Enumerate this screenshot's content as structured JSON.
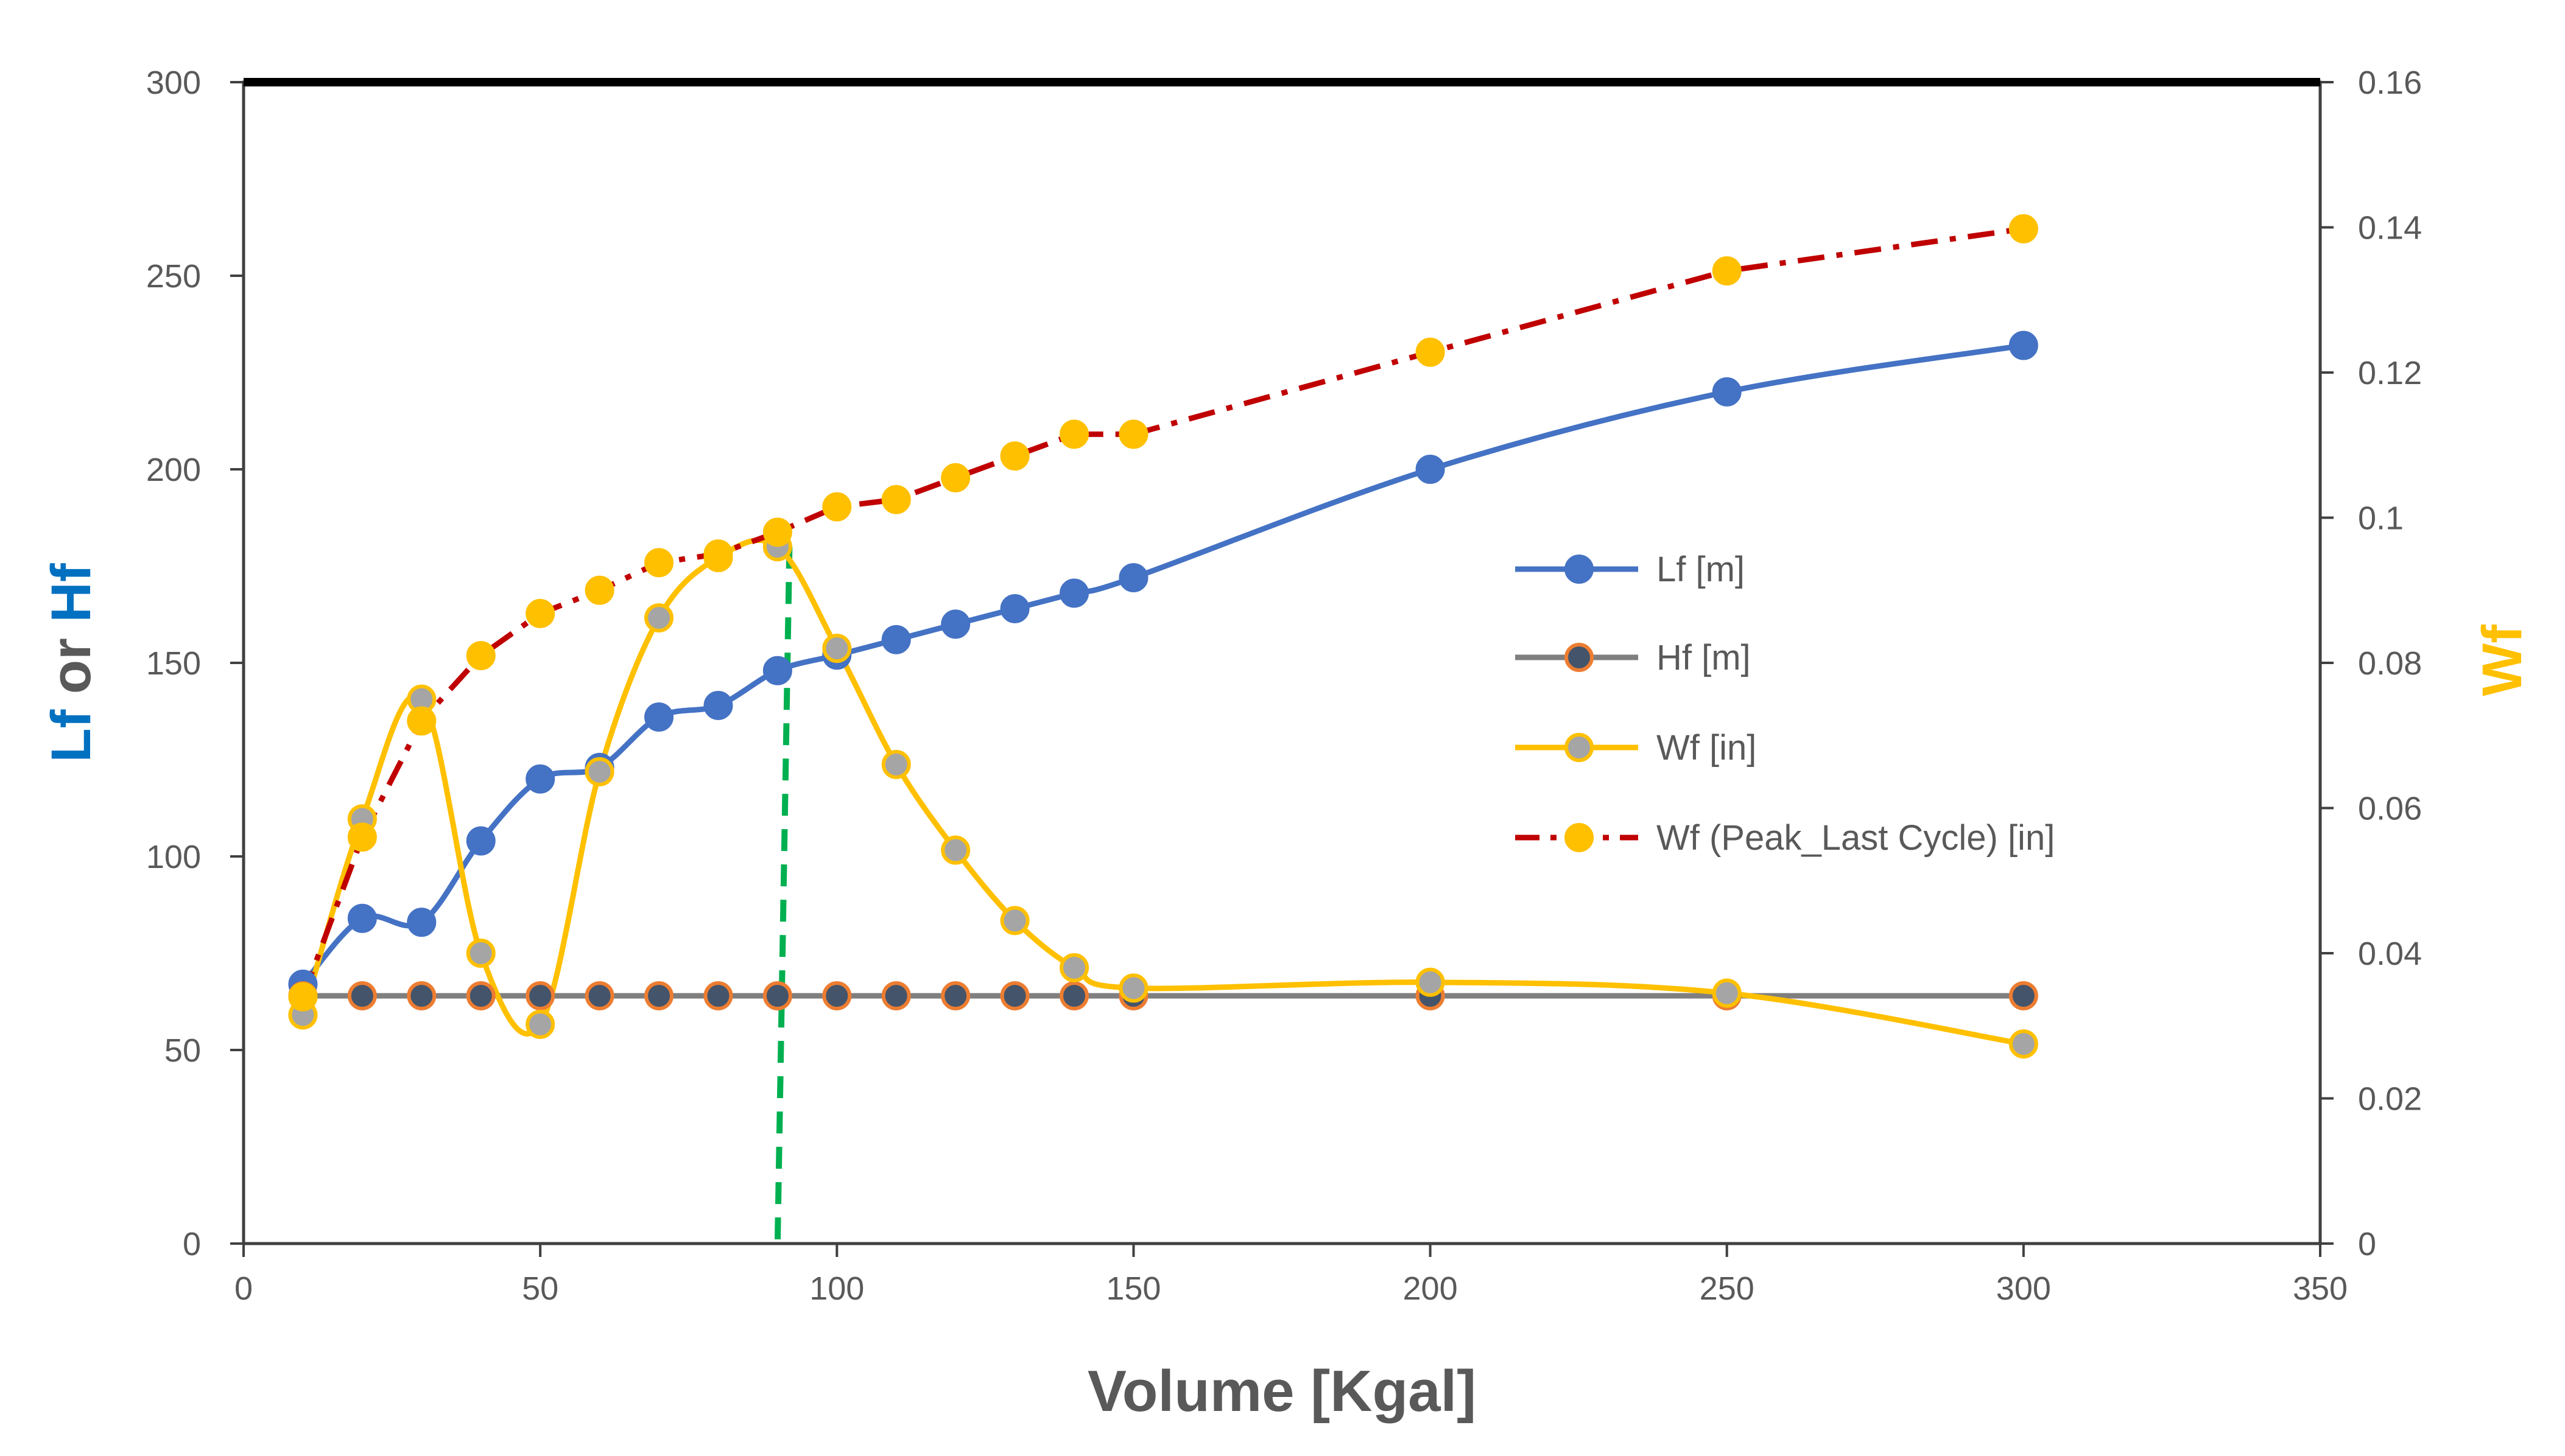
{
  "chart_data": {
    "type": "line",
    "xlabel": "Volume [Kgal]",
    "ylabel_left": {
      "parts": [
        "Lf",
        " or ",
        "Hf"
      ],
      "colors": [
        "#0070C0",
        "#595959",
        "#0070C0"
      ]
    },
    "ylabel_right": "Wf",
    "ylabel_right_color": "#FFC000",
    "xlim": [
      0,
      350
    ],
    "ylim_left": [
      0,
      300
    ],
    "ylim_right": [
      0,
      0.16
    ],
    "x_ticks": [
      "0",
      "50",
      "100",
      "150",
      "200",
      "250",
      "300",
      "350"
    ],
    "y_left_ticks": [
      "0",
      "50",
      "100",
      "150",
      "200",
      "250",
      "300"
    ],
    "y_right_ticks": [
      "0",
      "0.02",
      "0.04",
      "0.06",
      "0.08",
      "0.1",
      "0.12",
      "0.14",
      "0.16"
    ],
    "grid": false,
    "legend_position": "center-right",
    "series": [
      {
        "name": "Lf [m]",
        "axis": "left",
        "style": "smooth-solid",
        "line_color": "#4472C4",
        "marker_fill": "#4472C4",
        "marker_stroke": "#4472C4",
        "x": [
          10,
          20,
          30,
          40,
          50,
          60,
          70,
          80,
          90,
          100,
          110,
          120,
          130,
          140,
          150,
          200,
          250,
          300
        ],
        "values": [
          67,
          84,
          83,
          104,
          120,
          123,
          136,
          139,
          148,
          152,
          156,
          160,
          164,
          168,
          172,
          200,
          220,
          232
        ]
      },
      {
        "name": "Hf [m]",
        "axis": "left",
        "style": "solid",
        "line_color": "#7F7F7F",
        "marker_fill": "#44546A",
        "marker_stroke": "#ED7D31",
        "x": [
          10,
          20,
          30,
          40,
          50,
          60,
          70,
          80,
          90,
          100,
          110,
          120,
          130,
          140,
          150,
          200,
          250,
          300
        ],
        "values": [
          64,
          64,
          64,
          64,
          64,
          64,
          64,
          64,
          64,
          64,
          64,
          64,
          64,
          64,
          64,
          64,
          64,
          64
        ]
      },
      {
        "name": "Wf [in]",
        "axis": "right",
        "style": "smooth-solid",
        "line_color": "#FFC000",
        "marker_fill": "#A5A5A5",
        "marker_stroke": "#FFC000",
        "x": [
          10,
          20,
          30,
          40,
          50,
          60,
          70,
          80,
          90,
          100,
          110,
          120,
          130,
          140,
          150,
          200,
          250,
          300
        ],
        "values": [
          0.0315,
          0.0585,
          0.075,
          0.04,
          0.0302,
          0.065,
          0.0862,
          0.0945,
          0.096,
          0.082,
          0.066,
          0.0542,
          0.0445,
          0.038,
          0.0352,
          0.036,
          0.0345,
          0.0275
        ]
      },
      {
        "name": "Wf (Peak_Last Cycle) [in]",
        "axis": "right",
        "style": "dash-dot",
        "line_color": "#C00000",
        "marker_fill": "#FFC000",
        "marker_stroke": "#FFC000",
        "x": [
          10,
          20,
          30,
          40,
          50,
          60,
          70,
          80,
          90,
          100,
          110,
          120,
          130,
          140,
          150,
          200,
          250,
          300
        ],
        "values": [
          0.034,
          0.056,
          0.072,
          0.081,
          0.0868,
          0.09,
          0.0938,
          0.095,
          0.098,
          0.1015,
          0.1025,
          0.1055,
          0.1085,
          0.1115,
          0.1115,
          0.1228,
          0.134,
          0.1398
        ]
      }
    ],
    "annotations": [
      {
        "type": "vertical-dashed-line",
        "color": "#00B050",
        "x_from": 90,
        "x_to": 92,
        "y_left_from": 0,
        "y_left_to": 180
      }
    ]
  }
}
